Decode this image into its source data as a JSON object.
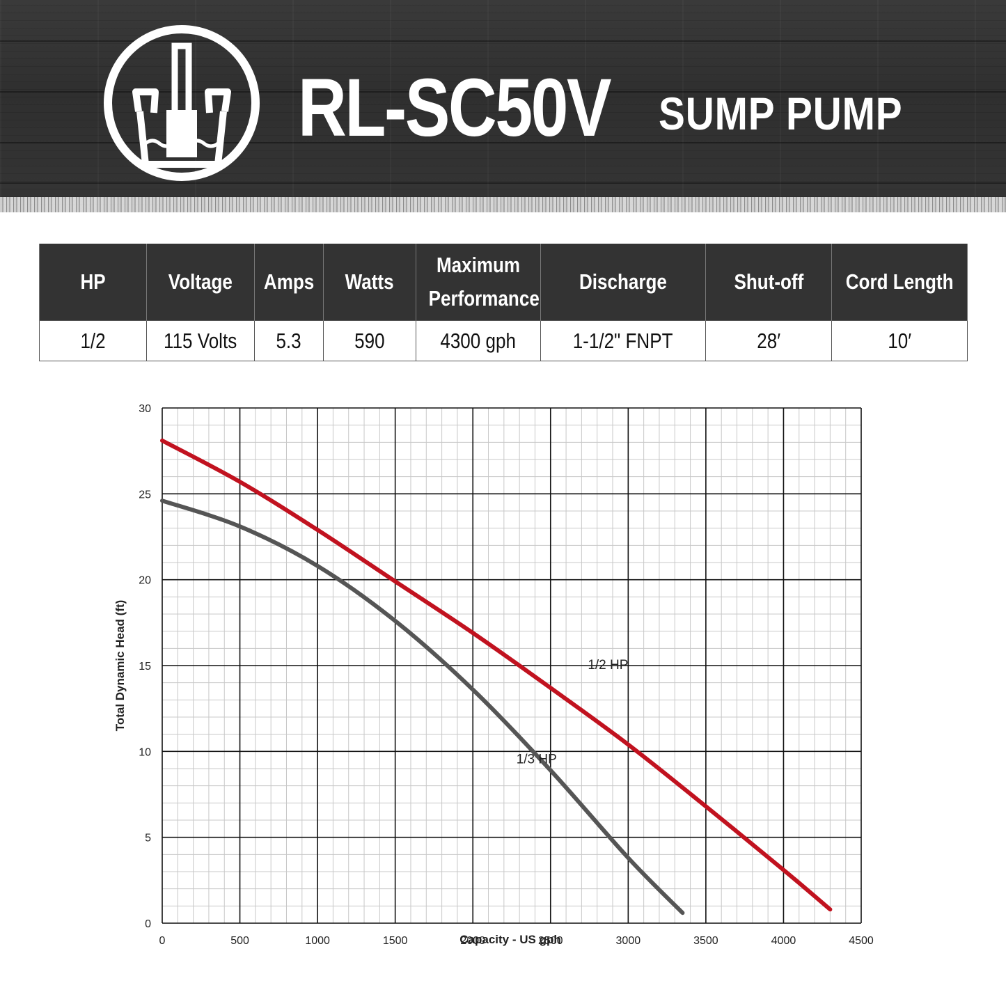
{
  "header": {
    "model": "RL-SC50V",
    "product": "SUMP PUMP",
    "logo_icon": "sump-pump-logo-icon"
  },
  "specs": {
    "headers": [
      "HP",
      "Voltage",
      "Amps",
      "Watts",
      "Maximum Performance",
      "Discharge",
      "Shut-off",
      "Cord Length"
    ],
    "values": [
      "1/2",
      "115 Volts",
      "5.3",
      "590",
      "4300 gph",
      "1-1/2\" FNPT",
      "28′",
      "10′"
    ]
  },
  "chart_data": {
    "type": "line",
    "title": "",
    "xlabel": "Capacity - US gph",
    "ylabel": "Total Dynamic Head (ft)",
    "xlim": [
      0,
      4500
    ],
    "ylim": [
      0,
      30
    ],
    "xticks": [
      0,
      500,
      1000,
      1500,
      2000,
      2500,
      3000,
      3500,
      4000,
      4500
    ],
    "yticks": [
      0,
      5,
      10,
      15,
      20,
      25,
      30
    ],
    "grid": true,
    "series": [
      {
        "name": "1/2 HP",
        "color": "#c1121f",
        "x": [
          0,
          500,
          1000,
          1500,
          2000,
          2500,
          3000,
          3500,
          4000,
          4300
        ],
        "y": [
          28.1,
          25.7,
          22.9,
          19.9,
          16.9,
          13.7,
          10.4,
          6.8,
          3.1,
          0.8
        ]
      },
      {
        "name": "1/3 HP",
        "color": "#555555",
        "x": [
          0,
          500,
          1000,
          1500,
          2000,
          2500,
          3000,
          3350
        ],
        "y": [
          24.6,
          23.1,
          20.8,
          17.6,
          13.6,
          8.9,
          3.8,
          0.6
        ]
      }
    ],
    "annotations": [
      {
        "text": "1/2 HP",
        "x": 2740,
        "y": 14.8
      },
      {
        "text": "1/3 HP",
        "x": 2280,
        "y": 9.3
      }
    ]
  }
}
